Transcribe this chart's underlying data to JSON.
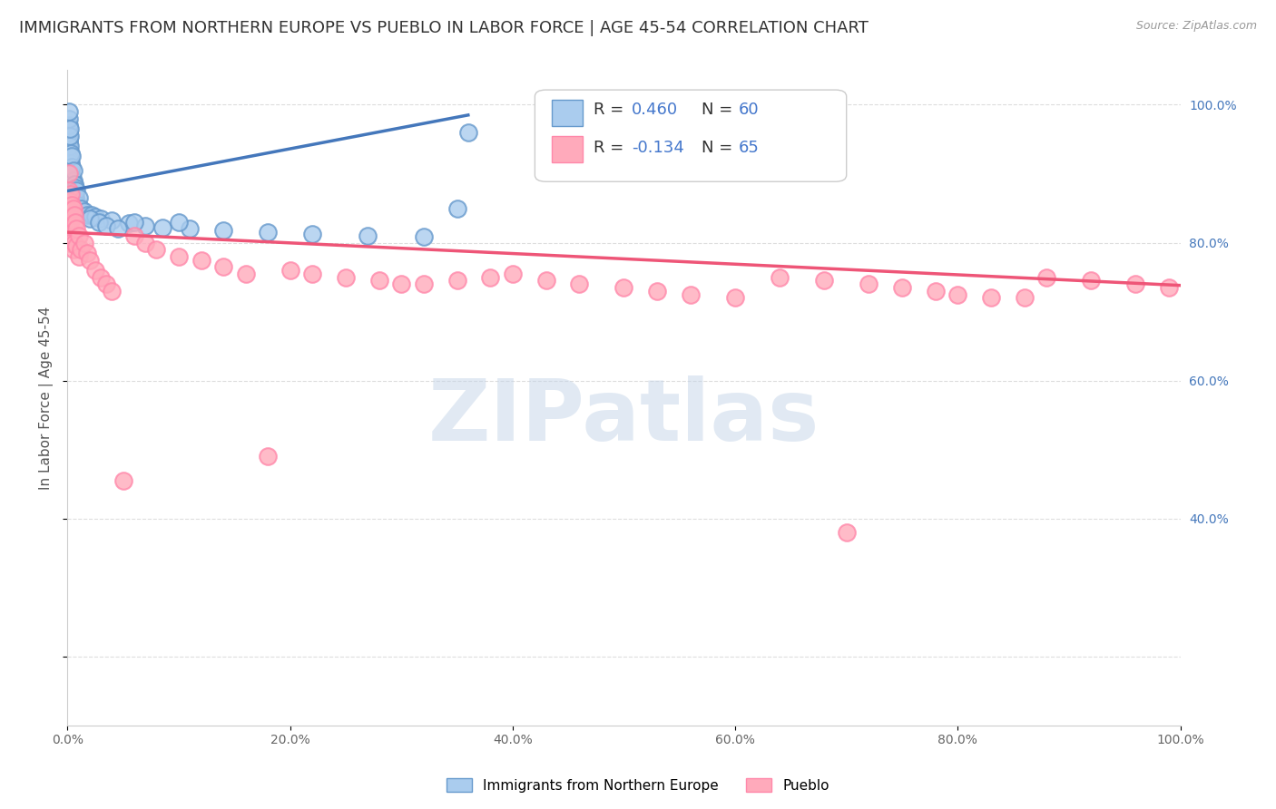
{
  "title": "IMMIGRANTS FROM NORTHERN EUROPE VS PUEBLO IN LABOR FORCE | AGE 45-54 CORRELATION CHART",
  "source": "Source: ZipAtlas.com",
  "ylabel": "In Labor Force | Age 45-54",
  "xlim": [
    0,
    1.0
  ],
  "ylim": [
    0.1,
    1.05
  ],
  "xticks": [
    0.0,
    0.2,
    0.4,
    0.6,
    0.8,
    1.0
  ],
  "xticklabels": [
    "0.0%",
    "20.0%",
    "40.0%",
    "60.0%",
    "80.0%",
    "100.0%"
  ],
  "yticks_right": [
    0.4,
    0.6,
    0.8,
    1.0
  ],
  "yticklabels_right": [
    "40.0%",
    "60.0%",
    "80.0%",
    "100.0%"
  ],
  "blue_R": 0.46,
  "blue_N": 60,
  "pink_R": -0.134,
  "pink_N": 65,
  "blue_color": "#AACCEE",
  "pink_color": "#FFAABB",
  "blue_edge_color": "#6699CC",
  "pink_edge_color": "#FF88AA",
  "blue_line_color": "#4477BB",
  "pink_line_color": "#EE5577",
  "watermark": "ZIPatlas",
  "watermark_color": "#C5D5E8",
  "legend_label_blue": "Immigrants from Northern Europe",
  "legend_label_pink": "Pueblo",
  "legend_R_color": "#4477CC",
  "legend_N_color": "#4477CC",
  "blue_scatter_x": [
    0.001,
    0.001,
    0.001,
    0.001,
    0.001,
    0.001,
    0.001,
    0.001,
    0.001,
    0.001,
    0.002,
    0.002,
    0.002,
    0.002,
    0.002,
    0.002,
    0.003,
    0.003,
    0.003,
    0.003,
    0.004,
    0.004,
    0.004,
    0.004,
    0.005,
    0.005,
    0.005,
    0.006,
    0.006,
    0.007,
    0.007,
    0.008,
    0.008,
    0.009,
    0.01,
    0.01,
    0.012,
    0.015,
    0.018,
    0.022,
    0.025,
    0.03,
    0.04,
    0.055,
    0.07,
    0.085,
    0.11,
    0.14,
    0.18,
    0.22,
    0.27,
    0.32,
    0.35,
    0.36,
    0.02,
    0.028,
    0.035,
    0.045,
    0.06,
    0.1
  ],
  "blue_scatter_y": [
    0.895,
    0.91,
    0.925,
    0.935,
    0.945,
    0.95,
    0.96,
    0.97,
    0.98,
    0.99,
    0.89,
    0.905,
    0.92,
    0.94,
    0.955,
    0.965,
    0.885,
    0.9,
    0.915,
    0.93,
    0.88,
    0.895,
    0.91,
    0.925,
    0.875,
    0.89,
    0.905,
    0.87,
    0.885,
    0.865,
    0.88,
    0.86,
    0.875,
    0.855,
    0.85,
    0.865,
    0.85,
    0.845,
    0.84,
    0.84,
    0.838,
    0.835,
    0.832,
    0.828,
    0.825,
    0.822,
    0.82,
    0.818,
    0.815,
    0.812,
    0.81,
    0.808,
    0.85,
    0.96,
    0.835,
    0.83,
    0.825,
    0.82,
    0.83,
    0.83
  ],
  "pink_scatter_x": [
    0.001,
    0.001,
    0.001,
    0.001,
    0.002,
    0.002,
    0.002,
    0.003,
    0.003,
    0.004,
    0.004,
    0.005,
    0.005,
    0.006,
    0.006,
    0.007,
    0.008,
    0.008,
    0.01,
    0.01,
    0.012,
    0.015,
    0.018,
    0.02,
    0.025,
    0.03,
    0.035,
    0.04,
    0.05,
    0.06,
    0.07,
    0.08,
    0.1,
    0.12,
    0.14,
    0.16,
    0.18,
    0.2,
    0.22,
    0.25,
    0.28,
    0.3,
    0.32,
    0.35,
    0.38,
    0.4,
    0.43,
    0.46,
    0.5,
    0.53,
    0.56,
    0.6,
    0.64,
    0.68,
    0.7,
    0.72,
    0.75,
    0.78,
    0.8,
    0.83,
    0.86,
    0.88,
    0.92,
    0.96,
    0.99
  ],
  "pink_scatter_y": [
    0.875,
    0.9,
    0.84,
    0.82,
    0.86,
    0.825,
    0.8,
    0.87,
    0.845,
    0.855,
    0.835,
    0.85,
    0.79,
    0.84,
    0.8,
    0.83,
    0.82,
    0.795,
    0.81,
    0.78,
    0.79,
    0.8,
    0.785,
    0.775,
    0.76,
    0.75,
    0.74,
    0.73,
    0.455,
    0.81,
    0.8,
    0.79,
    0.78,
    0.775,
    0.765,
    0.755,
    0.49,
    0.76,
    0.755,
    0.75,
    0.745,
    0.74,
    0.74,
    0.745,
    0.75,
    0.755,
    0.745,
    0.74,
    0.735,
    0.73,
    0.725,
    0.72,
    0.75,
    0.745,
    0.38,
    0.74,
    0.735,
    0.73,
    0.725,
    0.72,
    0.72,
    0.75,
    0.745,
    0.74,
    0.735
  ],
  "background_color": "#FFFFFF",
  "grid_color": "#DDDDDD",
  "title_fontsize": 13,
  "axis_label_fontsize": 11,
  "tick_fontsize": 10,
  "legend_fontsize": 13
}
